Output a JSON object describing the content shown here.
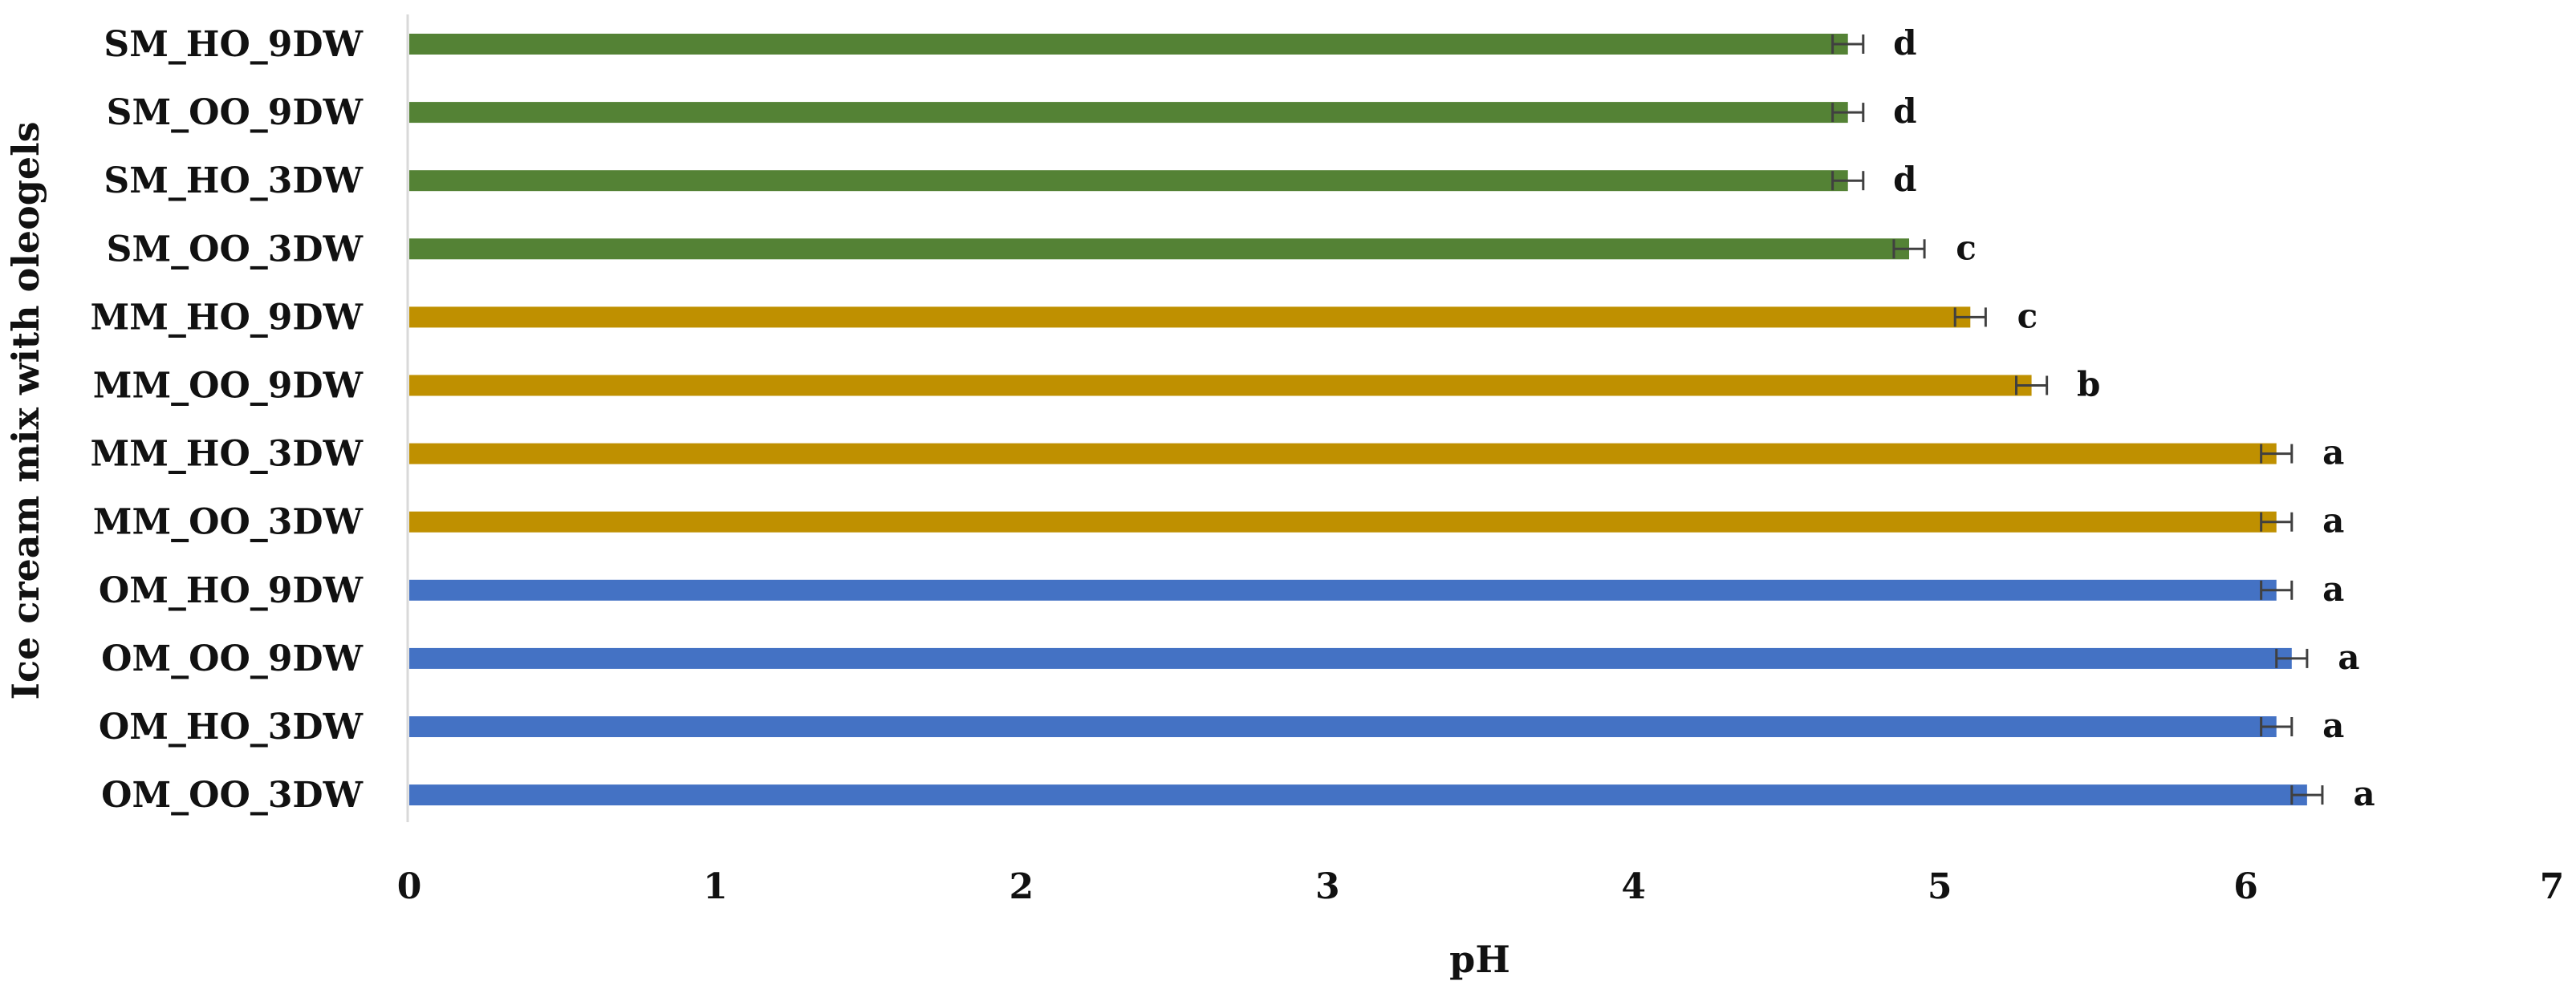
{
  "chart_data": {
    "type": "bar",
    "orientation": "horizontal",
    "title": "",
    "xlabel": "pH",
    "ylabel": "Ice cream mix with oleogels",
    "xlim": [
      0,
      7
    ],
    "xticks": [
      "0",
      "1",
      "2",
      "3",
      "4",
      "5",
      "6",
      "7"
    ],
    "grid": false,
    "legend": "none",
    "categories": [
      "SM_HO_9DW",
      "SM_OO_9DW",
      "SM_HO_3DW",
      "SM_OO_3DW",
      "MM_HO_9DW",
      "MM_OO_9DW",
      "MM_HO_3DW",
      "MM_OO_3DW",
      "OM_HO_9DW",
      "OM_OO_9DW",
      "OM_HO_3DW",
      "OM_OO_3DW"
    ],
    "values": [
      4.7,
      4.7,
      4.7,
      4.9,
      5.1,
      5.3,
      6.1,
      6.1,
      6.1,
      6.15,
      6.1,
      6.2
    ],
    "errors": [
      0.05,
      0.05,
      0.05,
      0.05,
      0.05,
      0.05,
      0.05,
      0.05,
      0.05,
      0.05,
      0.05,
      0.05
    ],
    "significance": [
      "d",
      "d",
      "d",
      "c",
      "c",
      "b",
      "a",
      "a",
      "a",
      "a",
      "a",
      "a"
    ],
    "groups": [
      "SM",
      "SM",
      "SM",
      "SM",
      "MM",
      "MM",
      "MM",
      "MM",
      "OM",
      "OM",
      "OM",
      "OM"
    ],
    "colors": {
      "SM": "#548235",
      "MM": "#BF9000",
      "OM": "#4472C4"
    }
  }
}
